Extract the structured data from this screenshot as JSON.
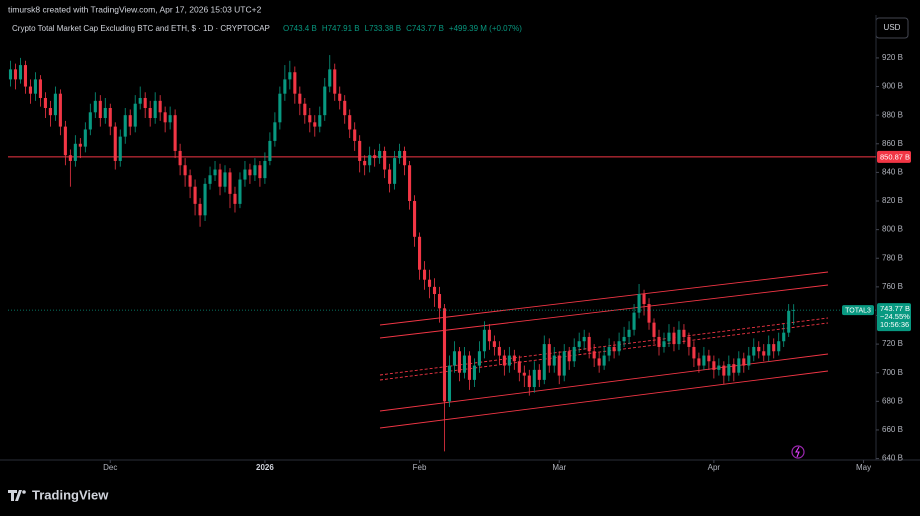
{
  "chart_data": {
    "type": "candlestick",
    "author_line": "timursk8 created with TradingView.com, Apr 17, 2026 15:03 UTC+2",
    "title": "Crypto Total Market Cap Excluding BTC and ETH, $ · 1D · CRYPTOCAP",
    "ohlc_labels": [
      "O743.4 B",
      "H747.91 B",
      "L733.38 B",
      "C743.77 B",
      "+499.39 M (+0.07%)"
    ],
    "currency": "USD",
    "brand": "TradingView",
    "up_color": "#089981",
    "down_color": "#f23645",
    "open": [
      905,
      912,
      905,
      915,
      900,
      895,
      905,
      892,
      885,
      880,
      895,
      872,
      852,
      848,
      860,
      858,
      870,
      882,
      890,
      878,
      885,
      872,
      848,
      865,
      880,
      872,
      888,
      892,
      885,
      878,
      890,
      882,
      875,
      880,
      855,
      845,
      838,
      830,
      818,
      810,
      832,
      838,
      842,
      830,
      840,
      825,
      818,
      835,
      842,
      838,
      845,
      836,
      848,
      862,
      875,
      895,
      905,
      910,
      895,
      888,
      880,
      875,
      872,
      880,
      900,
      912,
      895,
      890,
      880,
      870,
      862,
      848,
      845,
      852,
      850,
      855,
      842,
      832,
      850,
      855,
      845,
      820,
      795,
      772,
      765,
      760,
      755,
      745,
      680,
      705,
      715,
      700,
      712,
      695,
      705,
      715,
      730,
      722,
      718,
      712,
      705,
      712,
      708,
      700,
      698,
      690,
      702,
      695,
      720,
      705,
      712,
      698,
      715,
      708,
      718,
      722,
      725,
      715,
      710,
      705,
      712,
      718,
      715,
      722,
      725,
      730,
      742,
      755,
      748,
      735,
      725,
      718,
      722,
      728,
      720,
      730,
      725,
      718,
      710,
      705,
      712,
      708,
      702,
      705,
      698,
      706,
      700,
      710,
      705,
      712,
      718,
      715,
      712,
      720,
      715,
      722,
      728,
      743.4
    ],
    "high": [
      918,
      916,
      920,
      918,
      905,
      910,
      908,
      896,
      890,
      900,
      898,
      876,
      856,
      866,
      864,
      875,
      888,
      896,
      894,
      892,
      888,
      875,
      870,
      885,
      884,
      894,
      900,
      896,
      890,
      896,
      894,
      886,
      886,
      884,
      860,
      850,
      842,
      835,
      822,
      836,
      844,
      848,
      846,
      845,
      843,
      830,
      840,
      848,
      846,
      850,
      848,
      854,
      868,
      882,
      900,
      915,
      918,
      914,
      900,
      892,
      885,
      880,
      886,
      906,
      922,
      916,
      900,
      894,
      884,
      875,
      866,
      852,
      858,
      856,
      860,
      858,
      846,
      855,
      860,
      858,
      848,
      824,
      798,
      778,
      772,
      766,
      760,
      748,
      712,
      722,
      718,
      718,
      715,
      710,
      722,
      736,
      734,
      726,
      722,
      716,
      718,
      716,
      712,
      705,
      702,
      708,
      706,
      726,
      724,
      718,
      715,
      720,
      718,
      724,
      728,
      730,
      728,
      720,
      714,
      718,
      724,
      722,
      728,
      732,
      736,
      748,
      762,
      758,
      752,
      738,
      730,
      728,
      734,
      732,
      736,
      734,
      728,
      722,
      714,
      718,
      716,
      712,
      710,
      708,
      712,
      710,
      715,
      714,
      718,
      724,
      722,
      720,
      726,
      724,
      728,
      734,
      748,
      747.91
    ],
    "low": [
      900,
      898,
      902,
      895,
      888,
      890,
      886,
      878,
      872,
      876,
      866,
      845,
      830,
      844,
      850,
      854,
      866,
      878,
      872,
      874,
      866,
      842,
      844,
      860,
      866,
      868,
      884,
      878,
      872,
      874,
      876,
      868,
      870,
      850,
      838,
      830,
      822,
      810,
      802,
      806,
      828,
      834,
      824,
      826,
      815,
      812,
      815,
      830,
      832,
      834,
      830,
      832,
      845,
      858,
      870,
      890,
      898,
      888,
      880,
      874,
      868,
      865,
      868,
      876,
      896,
      890,
      884,
      874,
      864,
      855,
      840,
      838,
      840,
      844,
      846,
      836,
      826,
      828,
      846,
      838,
      814,
      788,
      765,
      758,
      752,
      746,
      735,
      645,
      676,
      700,
      694,
      696,
      688,
      690,
      700,
      710,
      716,
      712,
      706,
      698,
      700,
      702,
      694,
      690,
      684,
      686,
      690,
      692,
      700,
      700,
      692,
      694,
      702,
      704,
      714,
      716,
      710,
      704,
      700,
      702,
      708,
      710,
      712,
      718,
      720,
      726,
      738,
      740,
      730,
      720,
      712,
      714,
      718,
      715,
      716,
      720,
      712,
      704,
      700,
      702,
      702,
      696,
      698,
      692,
      694,
      694,
      698,
      700,
      702,
      708,
      710,
      708,
      708,
      710,
      712,
      718,
      725,
      733.38
    ],
    "close": [
      912,
      905,
      915,
      900,
      895,
      905,
      892,
      885,
      880,
      895,
      872,
      852,
      848,
      860,
      858,
      870,
      882,
      890,
      878,
      885,
      872,
      848,
      865,
      880,
      872,
      888,
      892,
      885,
      878,
      890,
      882,
      875,
      880,
      855,
      845,
      838,
      830,
      818,
      810,
      832,
      838,
      842,
      830,
      840,
      825,
      818,
      835,
      842,
      838,
      845,
      836,
      848,
      862,
      875,
      895,
      905,
      910,
      895,
      888,
      880,
      875,
      872,
      880,
      900,
      912,
      895,
      890,
      880,
      870,
      862,
      848,
      845,
      852,
      850,
      855,
      842,
      832,
      850,
      855,
      845,
      820,
      795,
      772,
      765,
      760,
      755,
      745,
      680,
      705,
      715,
      700,
      712,
      695,
      705,
      715,
      730,
      722,
      718,
      712,
      705,
      712,
      708,
      700,
      698,
      690,
      702,
      695,
      720,
      705,
      712,
      698,
      715,
      708,
      718,
      722,
      725,
      715,
      710,
      705,
      712,
      718,
      715,
      722,
      725,
      730,
      742,
      755,
      748,
      735,
      725,
      718,
      722,
      728,
      720,
      730,
      725,
      718,
      710,
      705,
      712,
      708,
      702,
      705,
      698,
      706,
      700,
      710,
      705,
      712,
      718,
      715,
      712,
      720,
      715,
      722,
      728,
      743.27,
      743.77
    ],
    "xlim": [
      -0.5,
      173.5
    ],
    "xticks": [
      {
        "value": 20,
        "label": "Dec"
      },
      {
        "value": 51,
        "label": "2026"
      },
      {
        "value": 82,
        "label": "Feb"
      },
      {
        "value": 110,
        "label": "Mar"
      },
      {
        "value": 141,
        "label": "Apr"
      },
      {
        "value": 171,
        "label": "May"
      }
    ],
    "ylim": [
      639,
      950
    ],
    "yticks": [
      {
        "value": 920,
        "label": "920 B"
      },
      {
        "value": 900,
        "label": "900 B"
      },
      {
        "value": 880,
        "label": "880 B"
      },
      {
        "value": 860,
        "label": "860 B"
      },
      {
        "value": 840,
        "label": "840 B"
      },
      {
        "value": 820,
        "label": "820 B"
      },
      {
        "value": 800,
        "label": "800 B"
      },
      {
        "value": 780,
        "label": "780 B"
      },
      {
        "value": 760,
        "label": "760 B"
      },
      {
        "value": 740,
        "label": "740 B"
      },
      {
        "value": 720,
        "label": "720 B"
      },
      {
        "value": 700,
        "label": "700 B"
      },
      {
        "value": 680,
        "label": "680 B"
      },
      {
        "value": 660,
        "label": "660 B"
      },
      {
        "value": 640,
        "label": "640 B"
      }
    ],
    "grid": false,
    "level": {
      "value": 850.87,
      "label": "850.87 B",
      "color": "#f23645"
    },
    "price_tag": {
      "name": "TOTAL3",
      "label": "743.77 B",
      "change": "−24.55%",
      "countdown": "10:56:36"
    }
  }
}
